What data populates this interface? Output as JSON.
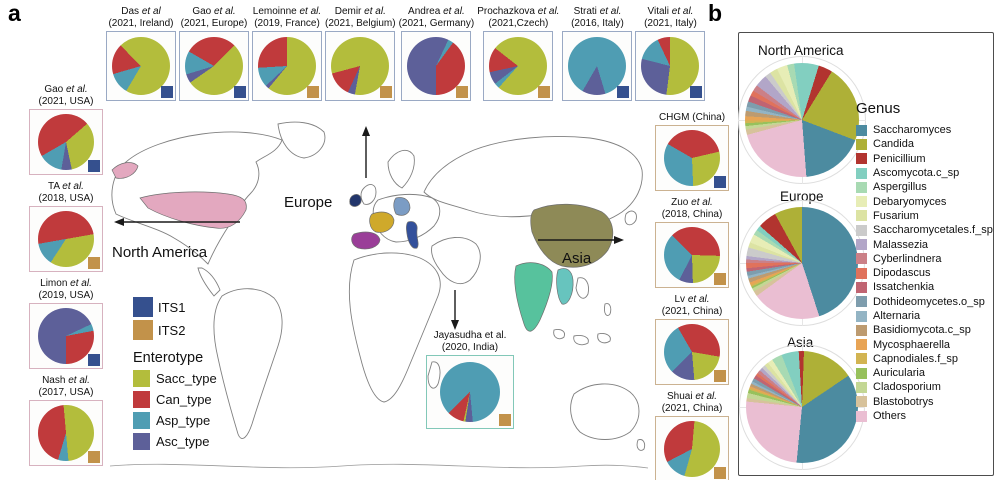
{
  "panels": {
    "a": "a",
    "b": "b"
  },
  "map_labels": {
    "europe": "Europe",
    "north_america": "North America",
    "asia": "Asia"
  },
  "its_legend": [
    {
      "label": "ITS1",
      "color_key": "ITS1"
    },
    {
      "label": "ITS2",
      "color_key": "ITS2"
    }
  ],
  "enterotype_legend": {
    "title": "Enterotype",
    "items": [
      {
        "label": "Sacc_type"
      },
      {
        "label": "Can_type"
      },
      {
        "label": "Asp_type"
      },
      {
        "label": "Asc_type"
      }
    ]
  },
  "panel_b": {
    "genus_legend": {
      "title": "Genus",
      "items": [
        {
          "label": "Saccharomyces"
        },
        {
          "label": "Candida"
        },
        {
          "label": "Penicillium"
        },
        {
          "label": "Ascomycota.c_sp"
        },
        {
          "label": "Aspergillus"
        },
        {
          "label": "Debaryomyces"
        },
        {
          "label": "Fusarium"
        },
        {
          "label": "Saccharomycetales.f_sp"
        },
        {
          "label": "Malassezia"
        },
        {
          "label": "Cyberlindnera"
        },
        {
          "label": "Dipodascus"
        },
        {
          "label": "Issatchenkia"
        },
        {
          "label": "Dothideomycetes.o_sp"
        },
        {
          "label": "Alternaria"
        },
        {
          "label": "Basidiomycota.c_sp"
        },
        {
          "label": "Mycosphaerella"
        },
        {
          "label": "Capnodiales.f_sp"
        },
        {
          "label": "Auricularia"
        },
        {
          "label": "Cladosporium"
        },
        {
          "label": "Blastobotrys"
        },
        {
          "label": "Others"
        }
      ]
    }
  },
  "palette": {
    "ITS1": "#35508e",
    "ITS2": "#c2924a",
    "Sacc_type": "#b3bd3c",
    "Can_type": "#c03a3c",
    "Asp_type": "#4f9db3",
    "Asc_type": "#5d6099",
    "Saccharomyces": "#4c8ba0",
    "Candida": "#aeb037",
    "Penicillium": "#b2342f",
    "Ascomycota.c_sp": "#82cfc0",
    "Aspergillus": "#a8dab3",
    "Debaryomyces": "#e7edb6",
    "Fusarium": "#dce3a3",
    "Saccharomycetales.f_sp": "#cbcbcb",
    "Malassezia": "#b2a6c8",
    "Cyberlindnera": "#cb8087",
    "Dipodascus": "#e0725c",
    "Issatchenkia": "#c06472",
    "Dothideomycetes.o_sp": "#7e9dad",
    "Alternaria": "#93b4c4",
    "Basidiomycota.c_sp": "#bd9b70",
    "Mycosphaerella": "#e8a455",
    "Capnodiales.f_sp": "#d2b452",
    "Auricularia": "#97c15c",
    "Cladosporium": "#c3d794",
    "Blastobotrys": "#d7c29b",
    "Others": "#eabed2",
    "map_usa": "#e3a8bf",
    "map_ireland": "#22356b",
    "map_france": "#cfa92b",
    "map_germany": "#7b9cc4",
    "map_spain": "#9a3e98",
    "map_italy": "#33509b",
    "map_china": "#8e8a57",
    "map_india": "#57c29d",
    "map_myanmar": "#67c4be"
  },
  "chart_data": {
    "type": "pie-collection",
    "map_studies": [
      {
        "group": "top",
        "author": "Das",
        "etal": "et al",
        "detail": "(2021, Ireland)",
        "marker": "ITS1",
        "rot": -45,
        "slices": [
          [
            "Sacc_type",
            71
          ],
          [
            "Asp_type",
            12
          ],
          [
            "Can_type",
            17
          ]
        ]
      },
      {
        "group": "top",
        "author": "Gao",
        "etal": "et al.",
        "detail": "(2021, Europe)",
        "marker": "ITS1",
        "rot": -60,
        "slices": [
          [
            "Can_type",
            29
          ],
          [
            "Sacc_type",
            53
          ],
          [
            "Asc_type",
            5
          ],
          [
            "Asp_type",
            13
          ]
        ]
      },
      {
        "group": "top",
        "author": "Lemoinne",
        "etal": "et al.",
        "detail": "(2019, France)",
        "marker": "ITS2",
        "rot": 0,
        "slices": [
          [
            "Sacc_type",
            61
          ],
          [
            "Asc_type",
            2
          ],
          [
            "Asp_type",
            11
          ],
          [
            "Can_type",
            26
          ]
        ]
      },
      {
        "group": "top",
        "author": "Demir",
        "etal": "et al.",
        "detail": "(2021, Belgium)",
        "marker": "ITS2",
        "rot": -105,
        "slices": [
          [
            "Sacc_type",
            82
          ],
          [
            "Asc_type",
            4
          ],
          [
            "Can_type",
            14
          ]
        ]
      },
      {
        "group": "top",
        "author": "Andrea",
        "etal": "et al.",
        "detail": "(2021, Germany)",
        "marker": "ITS2",
        "rot": 180,
        "slices": [
          [
            "Asc_type",
            57
          ],
          [
            "Asp_type",
            3
          ],
          [
            "Can_type",
            40
          ]
        ]
      },
      {
        "group": "top",
        "author": "Prochazkova",
        "etal": "et al.",
        "detail": "(2021,Czech)",
        "marker": "ITS2",
        "rot": -52,
        "slices": [
          [
            "Sacc_type",
            76
          ],
          [
            "Asp_type",
            3
          ],
          [
            "Asc_type",
            7
          ],
          [
            "Can_type",
            14
          ]
        ]
      },
      {
        "group": "top",
        "author": "Strati",
        "etal": "et al.",
        "detail": "(2016, Italy)",
        "marker": "ITS1",
        "rot": 210,
        "slices": [
          [
            "Asp_type",
            87
          ],
          [
            "Asc_type",
            13
          ]
        ]
      },
      {
        "group": "top",
        "author": "Vitali",
        "etal": "et al.",
        "detail": "(2021, Italy)",
        "marker": "ITS1",
        "rot": 0,
        "slices": [
          [
            "Sacc_type",
            52
          ],
          [
            "Asc_type",
            27
          ],
          [
            "Asp_type",
            14
          ],
          [
            "Can_type",
            7
          ]
        ]
      },
      {
        "group": "left",
        "author": "Gao",
        "etal": "et al.",
        "detail": "(2021, USA)",
        "marker": "ITS1",
        "rot": -120,
        "slices": [
          [
            "Can_type",
            47
          ],
          [
            "Sacc_type",
            33
          ],
          [
            "Asc_type",
            6
          ],
          [
            "Asp_type",
            14
          ]
        ]
      },
      {
        "group": "left",
        "author": "TA",
        "etal": "et al.",
        "detail": "(2018, USA)",
        "marker": "ITS2",
        "rot": -100,
        "slices": [
          [
            "Can_type",
            50
          ],
          [
            "Sacc_type",
            37
          ],
          [
            "Asp_type",
            13
          ]
        ]
      },
      {
        "group": "left",
        "author": "Limon",
        "etal": "et al.",
        "detail": "(2019, USA)",
        "marker": "ITS1",
        "rot": 180,
        "slices": [
          [
            "Asc_type",
            68
          ],
          [
            "Asp_type",
            4
          ],
          [
            "Can_type",
            28
          ]
        ]
      },
      {
        "group": "left",
        "author": "Nash",
        "etal": "et al.",
        "detail": "(2017, USA)",
        "marker": "ITS2",
        "rot": -5,
        "slices": [
          [
            "Sacc_type",
            50
          ],
          [
            "Asp_type",
            6
          ],
          [
            "Can_type",
            44
          ]
        ]
      },
      {
        "group": "right",
        "author": "CHGM (China)",
        "etal": "",
        "detail": "",
        "marker": "ITS1",
        "rot": -60,
        "slices": [
          [
            "Can_type",
            38
          ],
          [
            "Sacc_type",
            28
          ],
          [
            "Asp_type",
            34
          ]
        ]
      },
      {
        "group": "right",
        "author": "Zuo",
        "etal": "et al.",
        "detail": "(2018, China)",
        "marker": "ITS2",
        "rot": -45,
        "slices": [
          [
            "Can_type",
            38
          ],
          [
            "Sacc_type",
            24
          ],
          [
            "Asc_type",
            8
          ],
          [
            "Asp_type",
            30
          ]
        ]
      },
      {
        "group": "right",
        "author": "Lv",
        "etal": "et al.",
        "detail": "(2021, China)",
        "marker": "ITS2",
        "rot": -30,
        "slices": [
          [
            "Can_type",
            36
          ],
          [
            "Sacc_type",
            21
          ],
          [
            "Asc_type",
            14
          ],
          [
            "Asp_type",
            29
          ]
        ]
      },
      {
        "group": "right",
        "author": "Shuai",
        "etal": "et al.",
        "detail": "(2021, China)",
        "marker": "ITS2",
        "rot": 5,
        "slices": [
          [
            "Sacc_type",
            53
          ],
          [
            "Asp_type",
            13
          ],
          [
            "Can_type",
            34
          ]
        ]
      },
      {
        "group": "india",
        "author": "Jayasudha et al.",
        "etal": "",
        "detail": "(2020, India)",
        "marker": "ITS2",
        "rot": 225,
        "slices": [
          [
            "Asp_type",
            86
          ],
          [
            "Asc_type",
            4
          ],
          [
            "Sacc_type",
            1
          ],
          [
            "Can_type",
            9
          ]
        ]
      }
    ],
    "regional": [
      {
        "name": "North America",
        "rot": -8,
        "slices": [
          [
            "Ascomycota.c_sp",
            7
          ],
          [
            "Penicillium",
            4
          ],
          [
            "Candida",
            22
          ],
          [
            "Saccharomyces",
            18
          ],
          [
            "Others",
            22
          ],
          [
            "Blastobotrys",
            1.5
          ],
          [
            "Cladosporium",
            1
          ],
          [
            "Auricularia",
            0.8
          ],
          [
            "Capnodiales.f_sp",
            0.8
          ],
          [
            "Mycosphaerella",
            1.2
          ],
          [
            "Basidiomycota.c_sp",
            1.5
          ],
          [
            "Alternaria",
            1.2
          ],
          [
            "Dothideomycetes.o_sp",
            1.5
          ],
          [
            "Issatchenkia",
            1.8
          ],
          [
            "Dipodascus",
            1.5
          ],
          [
            "Cyberlindnera",
            1.8
          ],
          [
            "Malassezia",
            3.5
          ],
          [
            "Saccharomycetales.f_sp",
            1.7
          ],
          [
            "Fusarium",
            2.2
          ],
          [
            "Debaryomyces",
            3
          ],
          [
            "Aspergillus",
            2
          ]
        ]
      },
      {
        "name": "Europe",
        "rot": 0,
        "slices": [
          [
            "Saccharomyces",
            45
          ],
          [
            "Others",
            20
          ],
          [
            "Blastobotrys",
            1.5
          ],
          [
            "Cladosporium",
            1
          ],
          [
            "Auricularia",
            0.5
          ],
          [
            "Capnodiales.f_sp",
            0.5
          ],
          [
            "Mycosphaerella",
            0.8
          ],
          [
            "Basidiomycota.c_sp",
            1.2
          ],
          [
            "Alternaria",
            0.8
          ],
          [
            "Dothideomycetes.o_sp",
            1.2
          ],
          [
            "Issatchenkia",
            1
          ],
          [
            "Dipodascus",
            1.5
          ],
          [
            "Cyberlindnera",
            1
          ],
          [
            "Malassezia",
            1
          ],
          [
            "Saccharomycetales.f_sp",
            2.5
          ],
          [
            "Fusarium",
            1.5
          ],
          [
            "Debaryomyces",
            2.5
          ],
          [
            "Aspergillus",
            1.5
          ],
          [
            "Ascomycota.c_sp",
            1.5
          ],
          [
            "Penicillium",
            5.5
          ],
          [
            "Candida",
            8
          ]
        ]
      },
      {
        "name": "Asia",
        "rot": 2,
        "slices": [
          [
            "Candida",
            15
          ],
          [
            "Saccharomyces",
            36
          ],
          [
            "Others",
            25
          ],
          [
            "Blastobotrys",
            1
          ],
          [
            "Cladosporium",
            1.5
          ],
          [
            "Auricularia",
            1
          ],
          [
            "Capnodiales.f_sp",
            0.5
          ],
          [
            "Mycosphaerella",
            0.5
          ],
          [
            "Basidiomycota.c_sp",
            0.8
          ],
          [
            "Alternaria",
            0.7
          ],
          [
            "Dothideomycetes.o_sp",
            1
          ],
          [
            "Issatchenkia",
            1
          ],
          [
            "Dipodascus",
            0.8
          ],
          [
            "Cyberlindnera",
            1
          ],
          [
            "Malassezia",
            1
          ],
          [
            "Saccharomycetales.f_sp",
            1
          ],
          [
            "Fusarium",
            1.2
          ],
          [
            "Debaryomyces",
            1.5
          ],
          [
            "Aspergillus",
            3
          ],
          [
            "Ascomycota.c_sp",
            5
          ],
          [
            "Penicillium",
            1.5
          ]
        ]
      }
    ]
  }
}
